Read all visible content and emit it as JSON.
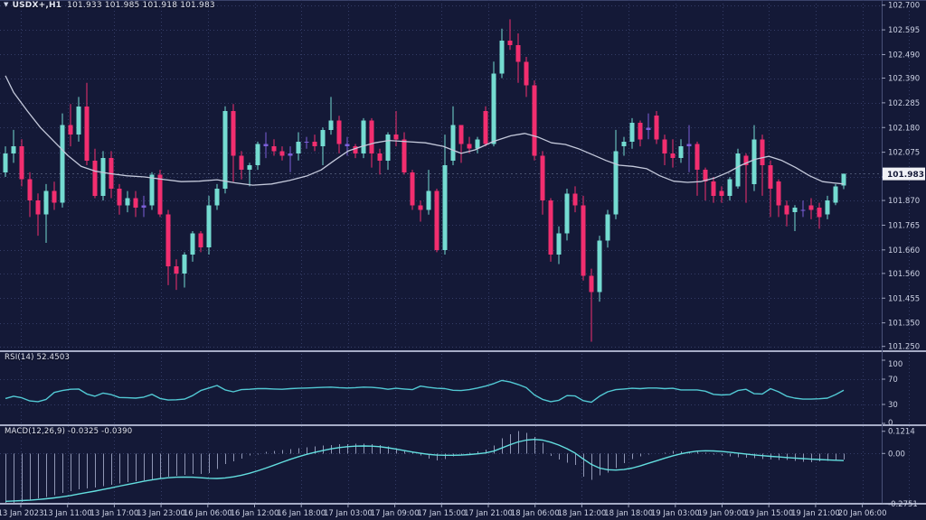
{
  "colors": {
    "background": "#141937",
    "grid": "#343c66",
    "separator": "#a6acc6",
    "bull_candle": "#74dbd1",
    "bear_candle": "#f22e6f",
    "doji_candle": "#7d5fd9",
    "ma_line": "#c4c9db",
    "rsi_line": "#52c9d4",
    "macd_signal_line": "#63dedf",
    "macd_histogram": "#8f96b4",
    "axis_text": "#cdd2e4",
    "price_box_bg": "#f0f1f6",
    "price_box_text": "#141937"
  },
  "chart_data": [
    {
      "type": "candlestick",
      "title": "USDX+,H1",
      "ohlc_label": "101.933 101.985 101.918 101.983",
      "dropdown_icon": "down-triangle",
      "last_price": 101.983,
      "last_price_label": "101.983",
      "ylim": [
        101.25,
        102.7
      ],
      "y_tick_labels": [
        "102.700",
        "102.595",
        "102.490",
        "102.390",
        "102.285",
        "102.180",
        "102.075",
        "101.970",
        "101.870",
        "101.765",
        "101.660",
        "101.560",
        "101.455",
        "101.350",
        "101.250"
      ],
      "y_tick_hidden_by_price_box": "101.970",
      "x_tick_labels": [
        "13 Jan 2023",
        "13 Jan 11:00",
        "13 Jan 17:00",
        "13 Jan 23:00",
        "16 Jan 06:00",
        "16 Jan 12:00",
        "16 Jan 18:00",
        "17 Jan 03:00",
        "17 Jan 09:00",
        "17 Jan 15:00",
        "17 Jan 21:00",
        "18 Jan 06:00",
        "18 Jan 12:00",
        "18 Jan 18:00",
        "19 Jan 03:00",
        "19 Jan 09:00",
        "19 Jan 15:00",
        "19 Jan 21:00",
        "20 Jan 06:00"
      ],
      "candles": [
        [
          101.99,
          102.1,
          101.97,
          102.07
        ],
        [
          102.07,
          102.17,
          102.03,
          102.1
        ],
        [
          102.1,
          102.13,
          101.93,
          101.96
        ],
        [
          101.96,
          101.99,
          101.8,
          101.87
        ],
        [
          101.87,
          101.9,
          101.72,
          101.81
        ],
        [
          101.81,
          101.94,
          101.69,
          101.91
        ],
        [
          101.91,
          101.95,
          101.83,
          101.86
        ],
        [
          101.86,
          102.24,
          101.84,
          102.19
        ],
        [
          102.19,
          102.28,
          102.1,
          102.15
        ],
        [
          102.15,
          102.31,
          102.12,
          102.27
        ],
        [
          102.27,
          102.37,
          102.02,
          102.04
        ],
        [
          102.04,
          102.09,
          101.88,
          101.89
        ],
        [
          101.89,
          102.08,
          101.87,
          102.05
        ],
        [
          102.05,
          102.08,
          101.88,
          101.92
        ],
        [
          101.92,
          101.94,
          101.81,
          101.85
        ],
        [
          101.85,
          101.91,
          101.82,
          101.88
        ],
        [
          101.88,
          101.91,
          101.8,
          101.84
        ],
        [
          101.84,
          101.89,
          101.8,
          101.85
        ],
        [
          101.85,
          101.99,
          101.83,
          101.98
        ],
        [
          101.98,
          102.0,
          101.8,
          101.81
        ],
        [
          101.81,
          101.83,
          101.51,
          101.59
        ],
        [
          101.59,
          101.62,
          101.49,
          101.56
        ],
        [
          101.56,
          101.65,
          101.5,
          101.64
        ],
        [
          101.64,
          101.74,
          101.61,
          101.73
        ],
        [
          101.73,
          101.74,
          101.65,
          101.67
        ],
        [
          101.67,
          101.89,
          101.64,
          101.85
        ],
        [
          101.85,
          101.94,
          101.83,
          101.92
        ],
        [
          101.92,
          102.27,
          101.9,
          102.25
        ],
        [
          102.25,
          102.28,
          101.95,
          102.06
        ],
        [
          102.06,
          102.08,
          101.96,
          102.0
        ],
        [
          102.0,
          102.03,
          101.93,
          102.02
        ],
        [
          102.02,
          102.12,
          102.0,
          102.11
        ],
        [
          102.11,
          102.16,
          102.05,
          102.1
        ],
        [
          102.1,
          102.13,
          102.06,
          102.08
        ],
        [
          102.08,
          102.1,
          102.04,
          102.06
        ],
        [
          102.06,
          102.1,
          101.99,
          102.07
        ],
        [
          102.07,
          102.16,
          102.04,
          102.12
        ],
        [
          102.12,
          102.14,
          102.09,
          102.12
        ],
        [
          102.12,
          102.15,
          102.08,
          102.1
        ],
        [
          102.1,
          102.18,
          102.02,
          102.17
        ],
        [
          102.17,
          102.31,
          102.15,
          102.21
        ],
        [
          102.21,
          102.23,
          102.07,
          102.11
        ],
        [
          102.11,
          102.14,
          102.06,
          102.1
        ],
        [
          102.1,
          102.11,
          102.05,
          102.07
        ],
        [
          102.07,
          102.22,
          102.05,
          102.21
        ],
        [
          102.21,
          102.22,
          102.01,
          102.07
        ],
        [
          102.07,
          102.09,
          101.98,
          102.04
        ],
        [
          102.04,
          102.16,
          102.0,
          102.15
        ],
        [
          102.15,
          102.25,
          102.1,
          102.13
        ],
        [
          102.13,
          102.16,
          101.98,
          101.99
        ],
        [
          101.99,
          102.0,
          101.83,
          101.85
        ],
        [
          101.85,
          101.87,
          101.78,
          101.83
        ],
        [
          101.83,
          102.0,
          101.81,
          101.91
        ],
        [
          101.91,
          101.92,
          101.65,
          101.66
        ],
        [
          101.66,
          102.15,
          101.64,
          102.02
        ],
        [
          102.04,
          102.27,
          102.02,
          102.19
        ],
        [
          102.19,
          102.19,
          102.03,
          102.11
        ],
        [
          102.11,
          102.14,
          102.07,
          102.09
        ],
        [
          102.09,
          102.14,
          102.07,
          102.13
        ],
        [
          102.25,
          102.27,
          102.1,
          102.11
        ],
        [
          102.11,
          102.46,
          102.1,
          102.41
        ],
        [
          102.41,
          102.6,
          102.39,
          102.55
        ],
        [
          102.55,
          102.64,
          102.51,
          102.53
        ],
        [
          102.53,
          102.58,
          102.37,
          102.46
        ],
        [
          102.46,
          102.48,
          102.31,
          102.36
        ],
        [
          102.36,
          102.38,
          102.04,
          102.06
        ],
        [
          102.06,
          102.08,
          101.81,
          101.87
        ],
        [
          101.87,
          101.88,
          101.61,
          101.64
        ],
        [
          101.64,
          101.76,
          101.6,
          101.73
        ],
        [
          101.73,
          101.92,
          101.7,
          101.9
        ],
        [
          101.9,
          101.93,
          101.82,
          101.85
        ],
        [
          101.85,
          101.89,
          101.53,
          101.55
        ],
        [
          101.55,
          101.58,
          101.27,
          101.48
        ],
        [
          101.48,
          101.72,
          101.44,
          101.7
        ],
        [
          101.7,
          101.83,
          101.67,
          101.81
        ],
        [
          101.81,
          102.17,
          101.79,
          102.08
        ],
        [
          102.1,
          102.14,
          102.06,
          102.12
        ],
        [
          102.12,
          102.22,
          102.09,
          102.2
        ],
        [
          102.2,
          102.21,
          102.1,
          102.13
        ],
        [
          102.17,
          102.24,
          102.13,
          102.18
        ],
        [
          102.23,
          102.25,
          102.11,
          102.13
        ],
        [
          102.13,
          102.15,
          102.02,
          102.07
        ],
        [
          102.07,
          102.13,
          102.01,
          102.05
        ],
        [
          102.05,
          102.13,
          102.03,
          102.1
        ],
        [
          102.1,
          102.19,
          101.99,
          102.11
        ],
        [
          102.11,
          102.12,
          101.89,
          102.0
        ],
        [
          102.0,
          102.01,
          101.87,
          101.95
        ],
        [
          101.95,
          101.97,
          101.86,
          101.89
        ],
        [
          101.91,
          101.93,
          101.86,
          101.89
        ],
        [
          101.89,
          101.97,
          101.87,
          101.96
        ],
        [
          101.93,
          102.09,
          101.92,
          102.07
        ],
        [
          102.06,
          102.07,
          101.86,
          102.02
        ],
        [
          101.94,
          102.19,
          101.91,
          102.13
        ],
        [
          102.13,
          102.15,
          101.89,
          102.02
        ],
        [
          102.02,
          102.04,
          101.8,
          101.92
        ],
        [
          101.95,
          101.96,
          101.8,
          101.85
        ],
        [
          101.85,
          101.87,
          101.76,
          101.81
        ],
        [
          101.82,
          101.85,
          101.74,
          101.84
        ],
        [
          101.83,
          101.87,
          101.8,
          101.83
        ],
        [
          101.85,
          101.88,
          101.79,
          101.83
        ],
        [
          101.84,
          101.86,
          101.75,
          101.8
        ],
        [
          101.81,
          101.89,
          101.79,
          101.87
        ],
        [
          101.86,
          101.94,
          101.85,
          101.93
        ],
        [
          101.933,
          101.985,
          101.918,
          101.983
        ]
      ],
      "ma_line_points_index_price": [
        [
          0,
          102.4
        ],
        [
          1,
          102.33
        ],
        [
          2.7,
          102.25
        ],
        [
          4.3,
          102.18
        ],
        [
          6,
          102.12
        ],
        [
          7.7,
          102.06
        ],
        [
          9.3,
          102.015
        ],
        [
          11,
          101.995
        ],
        [
          12.7,
          101.985
        ],
        [
          14.9,
          101.975
        ],
        [
          17.1,
          101.97
        ],
        [
          19.3,
          101.96
        ],
        [
          21.6,
          101.95
        ],
        [
          23.8,
          101.952
        ],
        [
          26,
          101.958
        ],
        [
          28.2,
          101.945
        ],
        [
          30.4,
          101.935
        ],
        [
          32.7,
          101.94
        ],
        [
          34.9,
          101.955
        ],
        [
          37.1,
          101.975
        ],
        [
          38.8,
          102.0
        ],
        [
          40.4,
          102.04
        ],
        [
          42.1,
          102.08
        ],
        [
          43.8,
          102.1
        ],
        [
          45.4,
          102.115
        ],
        [
          47.1,
          102.125
        ],
        [
          49.3,
          102.12
        ],
        [
          51.6,
          102.115
        ],
        [
          53.8,
          102.1
        ],
        [
          56,
          102.07
        ],
        [
          57.7,
          102.085
        ],
        [
          59.9,
          102.12
        ],
        [
          62.1,
          102.145
        ],
        [
          63.8,
          102.155
        ],
        [
          65.4,
          102.14
        ],
        [
          67.1,
          102.115
        ],
        [
          68.8,
          102.108
        ],
        [
          70.4,
          102.09
        ],
        [
          72.1,
          102.065
        ],
        [
          73.8,
          102.04
        ],
        [
          75.4,
          102.02
        ],
        [
          77.1,
          102.015
        ],
        [
          78.8,
          102.005
        ],
        [
          80.4,
          101.975
        ],
        [
          82.1,
          101.952
        ],
        [
          83.8,
          101.947
        ],
        [
          85.4,
          101.95
        ],
        [
          87.1,
          101.965
        ],
        [
          88.8,
          101.99
        ],
        [
          90.4,
          102.02
        ],
        [
          92.1,
          102.045
        ],
        [
          93.8,
          102.058
        ],
        [
          95.4,
          102.04
        ],
        [
          97.1,
          102.01
        ],
        [
          98.8,
          101.975
        ],
        [
          100.4,
          101.95
        ],
        [
          101.6,
          101.945
        ],
        [
          103,
          101.94
        ]
      ]
    },
    {
      "type": "line",
      "name": "RSI(14)",
      "label": "RSI(14) 52.4503",
      "current_value": 52.4503,
      "ylim": [
        0,
        100
      ],
      "level_lines": [
        70,
        30
      ],
      "y_tick_labels": [
        "100",
        "70",
        "30",
        "0"
      ],
      "values": [
        39.5,
        43,
        40.5,
        35.5,
        34.5,
        38,
        49,
        52,
        54,
        54.5,
        46.5,
        43,
        48,
        45.5,
        41,
        40.5,
        40,
        41.5,
        46,
        39.5,
        37,
        37.5,
        38.5,
        44,
        52,
        56,
        60,
        53,
        50,
        53.5,
        54,
        55,
        55,
        54.5,
        54,
        55,
        55.5,
        56,
        56.5,
        57,
        57.5,
        56.5,
        56,
        56.5,
        57.5,
        57,
        56,
        54,
        55.5,
        54.5,
        53.5,
        59,
        57,
        55.5,
        55,
        52.5,
        52,
        53.5,
        56,
        59,
        63,
        68,
        65.5,
        61.5,
        56.5,
        45,
        38,
        34.5,
        36.5,
        44,
        43.5,
        36,
        33.5,
        43,
        50,
        53.5,
        54.5,
        55.5,
        55,
        56,
        56,
        55,
        55.5,
        53,
        53,
        53,
        51,
        46,
        45,
        45.5,
        52,
        54,
        47,
        46.5,
        55,
        50,
        43,
        40,
        38.5,
        38.5,
        39,
        40,
        45.5,
        52.45
      ]
    },
    {
      "type": "macd",
      "name": "MACD(12,26,9)",
      "label": "MACD(12,26,9) -0.0325 -0.0390",
      "current_values": [
        -0.0325,
        -0.039
      ],
      "ylim": [
        -0.2751,
        0.1214
      ],
      "y_tick_labels": [
        "0.1214",
        "0.00",
        "-0.2751"
      ],
      "histogram": [
        -0.27,
        -0.2751,
        -0.265,
        -0.252,
        -0.246,
        -0.238,
        -0.228,
        -0.215,
        -0.205,
        -0.197,
        -0.191,
        -0.186,
        -0.178,
        -0.171,
        -0.165,
        -0.157,
        -0.151,
        -0.146,
        -0.141,
        -0.136,
        -0.128,
        -0.122,
        -0.117,
        -0.112,
        -0.113,
        -0.106,
        -0.085,
        -0.058,
        -0.042,
        -0.027,
        -0.012,
        -0.005,
        0.008,
        0.014,
        0.019,
        0.024,
        0.029,
        0.034,
        0.039,
        0.044,
        0.047,
        0.05,
        0.052,
        0.053,
        0.053,
        0.05,
        0.045,
        0.038,
        0.029,
        0.019,
        0.008,
        -0.01,
        -0.027,
        -0.038,
        -0.03,
        -0.016,
        -0.008,
        0.005,
        0.011,
        0.021,
        0.044,
        0.082,
        0.105,
        0.1214,
        0.112,
        0.09,
        0.058,
        -0.013,
        -0.034,
        -0.051,
        -0.063,
        -0.128,
        -0.145,
        -0.12,
        -0.104,
        -0.079,
        -0.054,
        -0.03,
        -0.015,
        -0.005,
        0.0,
        0.005,
        0.015,
        0.012,
        0.01,
        0.008,
        0.003,
        -0.005,
        -0.01,
        -0.015,
        -0.02,
        -0.022,
        -0.025,
        -0.03,
        -0.033,
        -0.035,
        -0.036,
        -0.04,
        -0.045,
        -0.047,
        -0.044,
        -0.04,
        -0.036,
        -0.0325
      ],
      "signal": [
        -0.262,
        -0.26,
        -0.258,
        -0.256,
        -0.252,
        -0.248,
        -0.243,
        -0.237,
        -0.23,
        -0.222,
        -0.214,
        -0.206,
        -0.197,
        -0.188,
        -0.179,
        -0.17,
        -0.161,
        -0.152,
        -0.145,
        -0.138,
        -0.133,
        -0.13,
        -0.129,
        -0.13,
        -0.133,
        -0.136,
        -0.137,
        -0.134,
        -0.128,
        -0.119,
        -0.108,
        -0.095,
        -0.08,
        -0.064,
        -0.048,
        -0.032,
        -0.018,
        -0.005,
        0.006,
        0.016,
        0.025,
        0.032,
        0.037,
        0.04,
        0.041,
        0.04,
        0.037,
        0.031,
        0.024,
        0.016,
        0.008,
        0.001,
        -0.005,
        -0.009,
        -0.01,
        -0.01,
        -0.009,
        -0.006,
        -0.002,
        0.003,
        0.013,
        0.03,
        0.048,
        0.063,
        0.073,
        0.077,
        0.073,
        0.062,
        0.046,
        0.026,
        0.002,
        -0.03,
        -0.06,
        -0.08,
        -0.089,
        -0.091,
        -0.088,
        -0.08,
        -0.068,
        -0.054,
        -0.04,
        -0.026,
        -0.013,
        -0.002,
        0.007,
        0.013,
        0.015,
        0.014,
        0.011,
        0.007,
        0.002,
        -0.003,
        -0.008,
        -0.012,
        -0.016,
        -0.019,
        -0.022,
        -0.025,
        -0.028,
        -0.031,
        -0.033,
        -0.035,
        -0.037,
        -0.039
      ]
    }
  ]
}
